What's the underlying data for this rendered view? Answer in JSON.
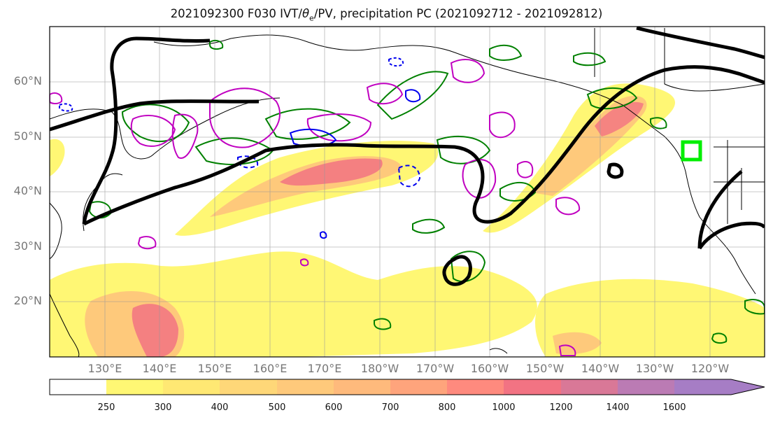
{
  "title": {
    "prefix": "2021092300 F030 IVT/",
    "theta": "θ",
    "theta_sub": "e",
    "suffix": "/PV, precipitation PC (2021092712 - 2021092812)"
  },
  "lat_labels": [
    "60°N",
    "50°N",
    "40°N",
    "30°N",
    "20°N"
  ],
  "lon_labels": [
    "130°E",
    "140°E",
    "150°E",
    "160°E",
    "170°E",
    "180°W",
    "170°W",
    "160°W",
    "150°W",
    "140°W",
    "130°W",
    "120°W"
  ],
  "colorbar": {
    "levels": [
      "250",
      "300",
      "400",
      "500",
      "600",
      "700",
      "800",
      "1000",
      "1200",
      "1400",
      "1600"
    ],
    "colors": [
      "#ffffff",
      "#fff774",
      "#ffe873",
      "#fed778",
      "#fec97b",
      "#feba7c",
      "#fea47c",
      "#fe8a7e",
      "#f27383",
      "#d97897",
      "#bb7bb4",
      "#a67dc5"
    ]
  },
  "colors": {
    "ivt_fill_low": "#fff774",
    "ivt_fill_mid": "#fec97b",
    "ivt_fill_high": "#f27383",
    "theta_e": "#000000",
    "pv_magenta": "#c000c0",
    "precip_green": "#008000",
    "dashed_blue": "#0000ee",
    "target_box": "#00ee00"
  }
}
